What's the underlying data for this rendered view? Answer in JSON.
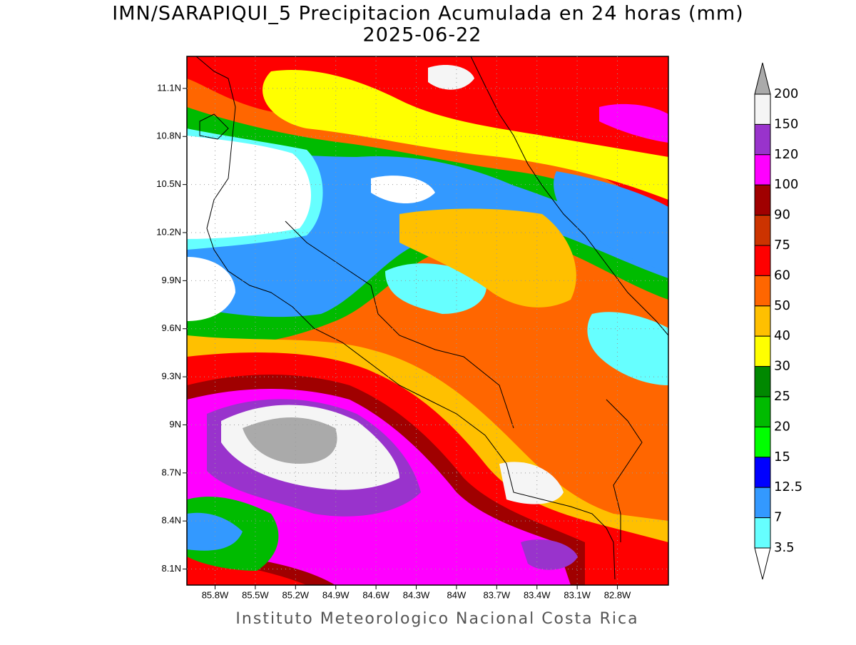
{
  "title": "IMN/SARAPIQUI_5 Precipitacion Acumulada en 24 horas (mm)",
  "subtitle": "2025-06-22",
  "credit": "Instituto Meteorologico Nacional Costa Rica",
  "map": {
    "xlim": [
      -86.01,
      -82.42
    ],
    "ylim": [
      8.0,
      11.3
    ],
    "lat_ticks": [
      {
        "value": 11.1,
        "label": "11.1N"
      },
      {
        "value": 10.8,
        "label": "10.8N"
      },
      {
        "value": 10.5,
        "label": "10.5N"
      },
      {
        "value": 10.2,
        "label": "10.2N"
      },
      {
        "value": 9.9,
        "label": "9.9N"
      },
      {
        "value": 9.6,
        "label": "9.6N"
      },
      {
        "value": 9.3,
        "label": "9.3N"
      },
      {
        "value": 9,
        "label": "9N"
      },
      {
        "value": 8.7,
        "label": "8.7N"
      },
      {
        "value": 8.4,
        "label": "8.4N"
      },
      {
        "value": 8.1,
        "label": "8.1N"
      }
    ],
    "lon_ticks": [
      {
        "value": -85.8,
        "label": "85.8W"
      },
      {
        "value": -85.5,
        "label": "85.5W"
      },
      {
        "value": -85.2,
        "label": "85.2W"
      },
      {
        "value": -84.9,
        "label": "84.9W"
      },
      {
        "value": -84.6,
        "label": "84.6W"
      },
      {
        "value": -84.3,
        "label": "84.3W"
      },
      {
        "value": -84,
        "label": "84W"
      },
      {
        "value": -83.7,
        "label": "83.7W"
      },
      {
        "value": -83.4,
        "label": "83.4W"
      },
      {
        "value": -83.1,
        "label": "83.1W"
      },
      {
        "value": -82.8,
        "label": "82.8W"
      }
    ]
  },
  "colorbar": {
    "levels": [
      200,
      150,
      120,
      100,
      90,
      75,
      60,
      50,
      40,
      30,
      25,
      20,
      15,
      12.5,
      7,
      3.5
    ],
    "colors": [
      "#f5f5f5",
      "#9933cc",
      "#ff00ff",
      "#a00000",
      "#cc3300",
      "#ff0000",
      "#ff6600",
      "#ffc000",
      "#ffff00",
      "#008800",
      "#00bb00",
      "#00ff00",
      "#0000ff",
      "#3399ff",
      "#66ffff"
    ],
    "over_color": "#aaaaaa",
    "under_color": "#ffffff"
  }
}
